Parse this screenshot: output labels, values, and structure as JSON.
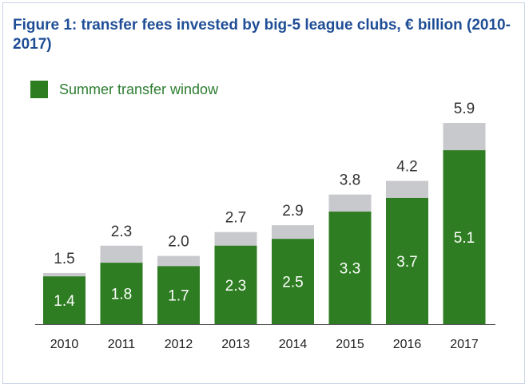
{
  "title": "Figure 1: transfer fees invested by big-5 league clubs, € billion (2010-2017)",
  "legend": {
    "label": "Summer transfer window"
  },
  "colors": {
    "summer": "#2e7d22",
    "total": "#c8c9cc",
    "title": "#1f4e96",
    "axis": "#555555"
  },
  "chart_data": {
    "type": "bar",
    "categories": [
      "2010",
      "2011",
      "2012",
      "2013",
      "2014",
      "2015",
      "2016",
      "2017"
    ],
    "series": [
      {
        "name": "Summer transfer window",
        "values": [
          1.4,
          1.8,
          1.7,
          2.3,
          2.5,
          3.3,
          3.7,
          5.1
        ]
      }
    ],
    "totals": [
      1.5,
      2.3,
      2.0,
      2.7,
      2.9,
      3.8,
      4.2,
      5.9
    ],
    "total_labels": [
      "1.5",
      "2.3",
      "2.0",
      "2.7",
      "2.9",
      "3.8",
      "4.2",
      "5.9"
    ],
    "value_labels": [
      "1.4",
      "1.8",
      "1.7",
      "2.3",
      "2.5",
      "3.3",
      "3.7",
      "5.1"
    ],
    "stacked": true,
    "ylim": [
      0,
      5.9
    ],
    "xlabel": "",
    "ylabel": "",
    "grid": false,
    "legend_position": "top-left"
  }
}
